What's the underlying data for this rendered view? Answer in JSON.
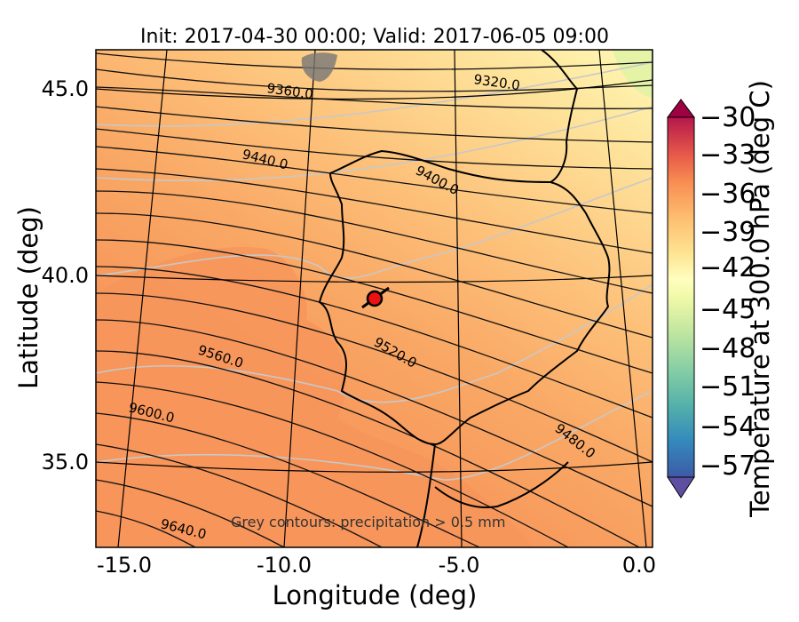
{
  "title": "Init: 2017-04-30 00:00; Valid: 2017-06-05 09:00",
  "x_axis": {
    "label": "Longitude (deg)",
    "ticks": [
      "-15.0",
      "-10.0",
      "-5.0",
      "0.0"
    ]
  },
  "y_axis": {
    "label": "Latitude (deg)",
    "ticks": [
      "45.0",
      "40.0",
      "35.0"
    ]
  },
  "colorbar": {
    "label": "Temperature at 300.0 hPa (deg C)",
    "ticks": [
      "−30",
      "−33",
      "−36",
      "−39",
      "−42",
      "−45",
      "−48",
      "−51",
      "−54",
      "−57"
    ],
    "range": [
      -58.5,
      -28.5
    ],
    "extend": "both",
    "colormap": "Spectral_r"
  },
  "contour_labels": [
    "9320.0",
    "9360.0",
    "9400.0",
    "9440.0",
    "9480.0",
    "9520.0",
    "9560.0",
    "9600.0",
    "9640.0"
  ],
  "annotation": "Grey contours: precipitation > 0.5 mm",
  "marker": {
    "color": "#ee1111",
    "edge_color": "#000000"
  },
  "colors": {
    "warm": "#f7955a",
    "mid": "#fdc17a",
    "cool": "#fff8b4",
    "coolest": "#e4f3a6"
  }
}
